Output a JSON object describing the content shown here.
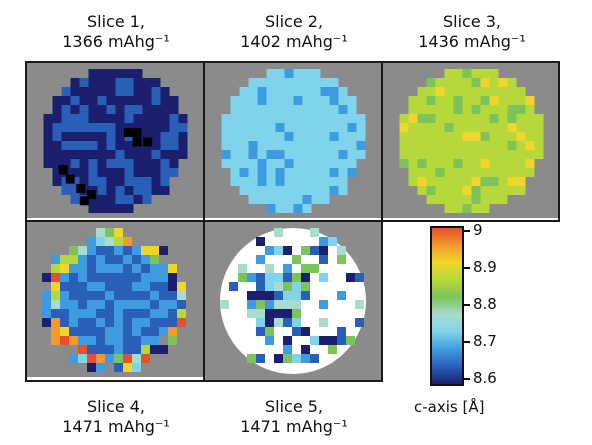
{
  "slices": [
    {
      "title_line1": "Slice 1,",
      "title_line2": "1366 mAhg⁻¹",
      "capacity": 1366,
      "mean_c_axis": 8.635
    },
    {
      "title_line1": "Slice 2,",
      "title_line2": "1402 mAhg⁻¹",
      "capacity": 1402,
      "mean_c_axis": 8.735
    },
    {
      "title_line1": "Slice 3,",
      "title_line2": "1436 mAhg⁻¹",
      "capacity": 1436,
      "mean_c_axis": 8.86
    },
    {
      "title_line1": "Slice 4,",
      "title_line2": "1471 mAhg⁻¹",
      "capacity": 1471,
      "mean_c_axis": 8.68
    },
    {
      "title_line1": "Slice 5,",
      "title_line2": "1471 mAhg⁻¹",
      "capacity": 1471,
      "mean_c_axis": 8.72
    }
  ],
  "colorbar": {
    "label": "c-axis [Å]",
    "ticks": [
      "9",
      "8.9",
      "8.8",
      "8.7",
      "8.6"
    ],
    "range": [
      8.6,
      9.0
    ],
    "colors": [
      "#1b1f6e",
      "#2a5fb8",
      "#3e9be0",
      "#7fd3ea",
      "#a8dccf",
      "#7cc45a",
      "#b6d83a",
      "#f0d62a",
      "#f39a2a",
      "#e8502a"
    ]
  },
  "chart_data": {
    "type": "heatmap",
    "title": "",
    "panels": [
      "Slice 1, 1366 mAhg⁻¹",
      "Slice 2, 1402 mAhg⁻¹",
      "Slice 3, 1436 mAhg⁻¹",
      "Slice 4, 1471 mAhg⁻¹",
      "Slice 5, 1471 mAhg⁻¹"
    ],
    "capacity_mAhg": [
      1366,
      1402,
      1436,
      1471,
      1471
    ],
    "mean_c_axis_A": [
      8.635,
      8.735,
      8.86,
      8.68,
      8.72
    ],
    "colorbar_label": "c-axis [Å]",
    "colorbar_range": [
      8.6,
      9.0
    ],
    "colorbar_ticks": [
      9.0,
      8.9,
      8.8,
      8.7,
      8.6
    ],
    "background_color": "#8b8b8b"
  }
}
